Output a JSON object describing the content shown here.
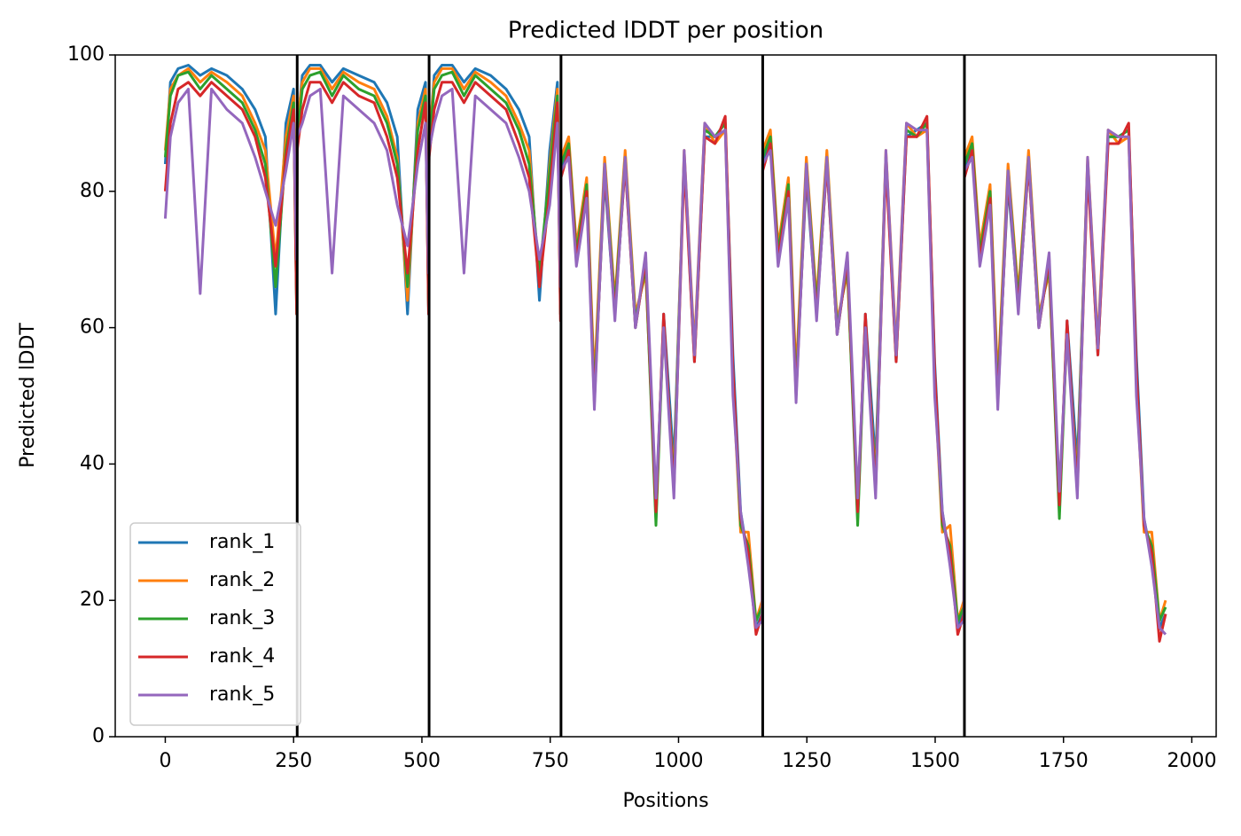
{
  "chart_data": {
    "type": "line",
    "title": "Predicted lDDT per position",
    "xlabel": "Positions",
    "ylabel": "Predicted lDDT",
    "xlim": [
      -97.5,
      2047.5
    ],
    "ylim": [
      0,
      100
    ],
    "xticks": [
      0,
      250,
      500,
      750,
      1000,
      1250,
      1500,
      1750,
      2000
    ],
    "yticks": [
      0,
      20,
      40,
      60,
      80,
      100
    ],
    "legend": "lower left",
    "vlines": [
      257,
      514,
      771,
      1164,
      1557
    ],
    "vline_color": "#000000",
    "x": [
      0,
      10,
      25,
      45,
      68,
      90,
      120,
      150,
      175,
      195,
      215,
      235,
      250,
      256,
      257,
      267,
      282,
      302,
      325,
      347,
      377,
      407,
      432,
      452,
      472,
      492,
      507,
      513,
      514,
      524,
      539,
      559,
      582,
      604,
      634,
      664,
      689,
      709,
      729,
      749,
      764,
      770,
      771,
      786,
      801,
      821,
      836,
      856,
      876,
      896,
      916,
      936,
      956,
      971,
      991,
      1011,
      1031,
      1051,
      1071,
      1091,
      1106,
      1121,
      1136,
      1151,
      1163,
      1164,
      1179,
      1194,
      1214,
      1229,
      1249,
      1269,
      1289,
      1309,
      1329,
      1349,
      1364,
      1384,
      1404,
      1424,
      1444,
      1464,
      1484,
      1499,
      1514,
      1529,
      1544,
      1556,
      1557,
      1572,
      1587,
      1607,
      1622,
      1642,
      1662,
      1682,
      1702,
      1722,
      1742,
      1757,
      1777,
      1797,
      1817,
      1837,
      1857,
      1877,
      1892,
      1907,
      1922,
      1937,
      1949
    ],
    "series": [
      {
        "name": "rank_1",
        "color": "#1f77b4",
        "values": [
          84,
          96,
          98,
          98.5,
          97,
          98,
          97,
          95,
          92,
          88,
          62,
          90,
          95,
          63,
          89,
          97,
          98.5,
          98.5,
          96,
          98,
          97,
          96,
          93,
          88,
          62,
          92,
          96,
          62,
          87,
          97,
          98.5,
          98.5,
          96,
          98,
          97,
          95,
          92,
          88,
          64,
          86,
          96,
          62,
          83,
          86,
          70,
          80,
          50,
          82,
          62,
          84,
          60,
          70,
          32,
          62,
          40,
          85,
          55,
          88,
          88,
          90,
          56,
          33,
          26,
          16,
          18,
          84,
          87,
          71,
          80,
          51,
          82,
          62,
          84,
          59,
          70,
          32,
          62,
          40,
          85,
          55,
          88,
          89,
          90,
          55,
          33,
          26,
          16,
          19,
          83,
          86,
          70,
          79,
          50,
          81,
          63,
          84,
          60,
          70,
          33,
          61,
          40,
          84,
          56,
          88,
          88,
          89,
          56,
          32,
          26,
          16,
          18
        ]
      },
      {
        "name": "rank_2",
        "color": "#ff7f0e",
        "values": [
          86,
          95,
          97,
          98,
          96,
          97.5,
          96,
          94,
          90,
          86,
          70,
          88,
          94,
          64,
          90,
          96,
          98,
          98,
          95,
          97.5,
          96,
          95,
          91,
          85,
          64,
          90,
          95,
          63,
          88,
          96,
          98,
          98,
          95,
          97.5,
          96,
          94,
          90,
          86,
          66,
          84,
          95,
          63,
          85,
          88,
          72,
          82,
          52,
          85,
          64,
          86,
          62,
          68,
          34,
          60,
          38,
          86,
          57,
          90,
          87,
          89,
          52,
          30,
          30,
          17,
          20,
          86,
          89,
          72,
          82,
          53,
          85,
          64,
          86,
          61,
          68,
          34,
          60,
          38,
          86,
          57,
          90,
          88,
          89,
          52,
          30,
          31,
          17,
          20,
          85,
          88,
          72,
          81,
          52,
          84,
          65,
          86,
          62,
          68,
          35,
          59,
          38,
          85,
          58,
          89,
          87,
          88,
          52,
          30,
          30,
          17,
          20
        ]
      },
      {
        "name": "rank_3",
        "color": "#2ca02c",
        "values": [
          85,
          94,
          97,
          97.5,
          95,
          97,
          95,
          93,
          89,
          84,
          66,
          86,
          93,
          62,
          88,
          95,
          97,
          97.5,
          94,
          97,
          95,
          94,
          90,
          84,
          66,
          89,
          94,
          63,
          87,
          95,
          97,
          97.5,
          94,
          97,
          95,
          93,
          89,
          84,
          68,
          83,
          94,
          62,
          84,
          87,
          71,
          81,
          50,
          84,
          63,
          85,
          61,
          69,
          31,
          61,
          37,
          85,
          56,
          89,
          88,
          90,
          53,
          31,
          28,
          17,
          19,
          85,
          88,
          71,
          81,
          51,
          84,
          63,
          85,
          60,
          69,
          31,
          61,
          37,
          85,
          56,
          89,
          88,
          90,
          53,
          31,
          28,
          17,
          19,
          84,
          87,
          71,
          80,
          50,
          83,
          64,
          85,
          61,
          69,
          32,
          60,
          37,
          84,
          57,
          88,
          88,
          89,
          53,
          31,
          28,
          17,
          19
        ]
      },
      {
        "name": "rank_4",
        "color": "#d62728",
        "values": [
          80,
          90,
          95,
          96,
          94,
          96,
          94,
          92,
          88,
          82,
          69,
          85,
          92,
          62,
          86,
          92,
          96,
          96,
          93,
          96,
          94,
          93,
          88,
          82,
          68,
          86,
          93,
          62,
          85,
          92,
          96,
          96,
          93,
          96,
          94,
          92,
          87,
          82,
          66,
          80,
          93,
          61,
          82,
          86,
          70,
          80,
          49,
          83,
          62,
          84,
          60,
          70,
          33,
          62,
          36,
          84,
          55,
          88,
          87,
          91,
          54,
          32,
          27,
          15,
          18,
          83,
          87,
          70,
          80,
          50,
          83,
          62,
          84,
          59,
          70,
          33,
          62,
          36,
          84,
          55,
          88,
          88,
          91,
          54,
          32,
          27,
          15,
          18,
          82,
          86,
          70,
          79,
          49,
          82,
          63,
          84,
          60,
          70,
          34,
          61,
          36,
          83,
          56,
          87,
          87,
          90,
          54,
          31,
          27,
          14,
          18
        ]
      },
      {
        "name": "rank_5",
        "color": "#9467bd",
        "values": [
          76,
          88,
          93,
          95,
          65,
          95,
          92,
          90,
          85,
          80,
          75,
          83,
          90,
          70,
          88,
          90,
          94,
          95,
          68,
          94,
          92,
          90,
          86,
          78,
          72,
          84,
          90,
          68,
          86,
          90,
          94,
          95,
          68,
          94,
          92,
          90,
          85,
          80,
          70,
          78,
          90,
          66,
          83,
          85,
          69,
          79,
          48,
          84,
          61,
          85,
          60,
          71,
          35,
          60,
          35,
          86,
          56,
          90,
          88,
          89,
          50,
          33,
          25,
          16,
          17,
          84,
          86,
          69,
          79,
          49,
          84,
          61,
          85,
          59,
          71,
          35,
          60,
          35,
          86,
          56,
          90,
          89,
          89,
          50,
          33,
          25,
          16,
          17,
          83,
          85,
          69,
          78,
          48,
          83,
          62,
          85,
          60,
          71,
          36,
          59,
          35,
          85,
          57,
          89,
          88,
          88,
          50,
          32,
          25,
          16,
          15
        ]
      }
    ]
  }
}
